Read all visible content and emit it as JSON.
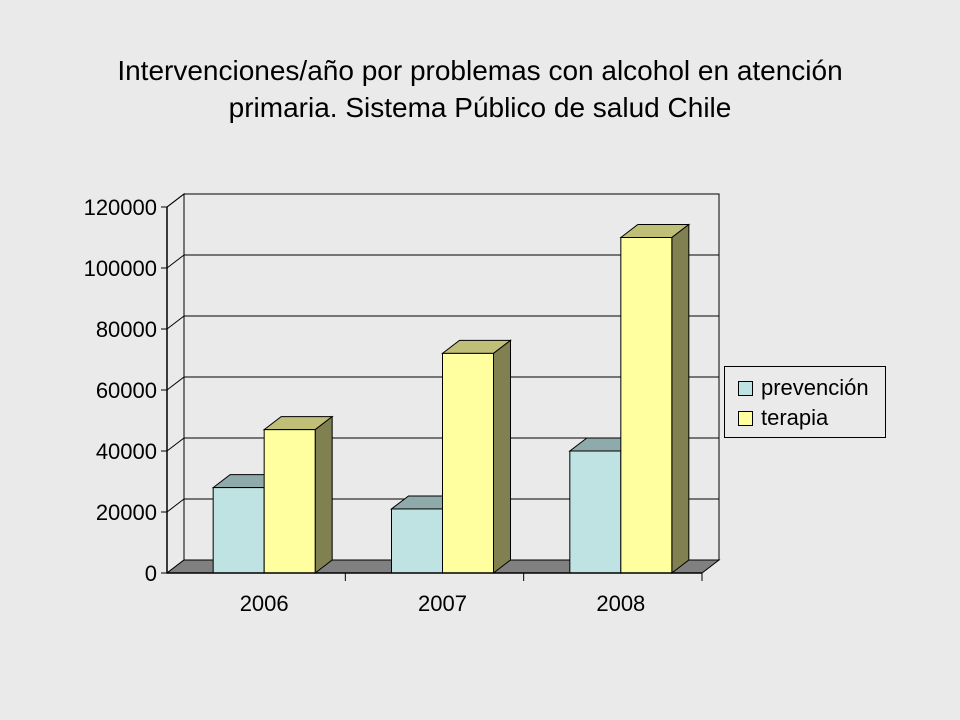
{
  "title_lines": [
    "Intervenciones/año por problemas con alcohol en atención",
    "primaria. Sistema Público de salud Chile"
  ],
  "chart_data": {
    "type": "bar",
    "categories": [
      "2006",
      "2007",
      "2008"
    ],
    "series": [
      {
        "name": "prevención",
        "values": [
          28000,
          21000,
          40000
        ],
        "color": "#bfe3e3"
      },
      {
        "name": "terapia",
        "values": [
          47000,
          72000,
          110000
        ],
        "color": "#ffffa0"
      }
    ],
    "ylim": [
      0,
      120000
    ],
    "yticks": [
      "0",
      "20000",
      "40000",
      "60000",
      "80000",
      "100000",
      "120000"
    ],
    "grid": true,
    "legend_position": "right",
    "style": "3d-clustered"
  }
}
